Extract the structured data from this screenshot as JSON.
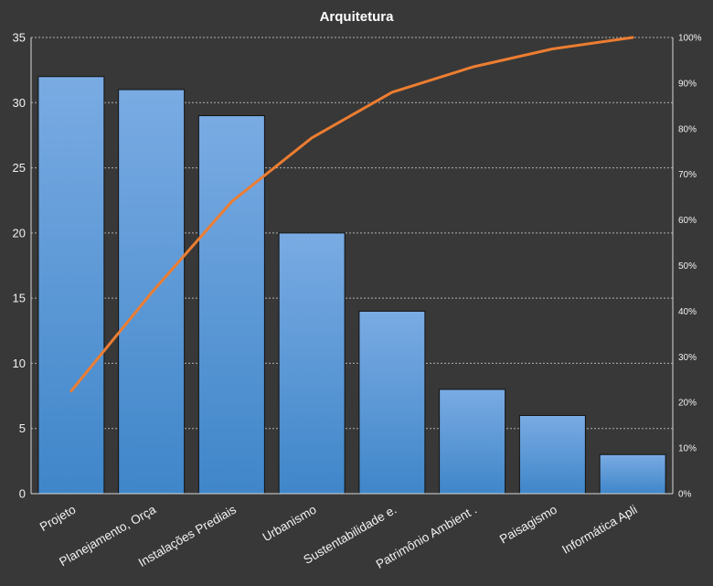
{
  "chart_data": {
    "type": "bar",
    "title": "Arquitetura",
    "categories": [
      "Projeto",
      "Planejamento, Orça",
      "Instalações Prediais",
      "Urbanismo",
      "Sustentabilidade e.",
      "Patrimônio Ambient .",
      "Paisagismo",
      "Informática Apli"
    ],
    "series": [
      {
        "type": "bar",
        "axis": "left",
        "values": [
          32,
          31,
          29,
          20,
          14,
          8,
          6,
          3
        ]
      },
      {
        "type": "line",
        "axis": "right",
        "values": [
          0.225,
          0.44,
          0.64,
          0.78,
          0.88,
          0.935,
          0.975,
          1.0
        ]
      }
    ],
    "ylim": [
      0,
      35
    ],
    "y_ticks": [
      "0",
      "5",
      "10",
      "15",
      "20",
      "25",
      "30",
      "35"
    ],
    "y2lim": [
      0,
      1
    ],
    "y2_ticks": [
      "0%",
      "10%",
      "20%",
      "30%",
      "40%",
      "50%",
      "60%",
      "70%",
      "80%",
      "90%",
      "100%"
    ],
    "grid": true,
    "legend": "none",
    "colors": {
      "background": "#383838",
      "bar_top": "#7aabe3",
      "bar_bottom": "#3f86c9",
      "bar_stroke": "#111111",
      "line": "#ed7d31",
      "grid": "#d9d9d9",
      "text": "#f2f2f2"
    }
  }
}
